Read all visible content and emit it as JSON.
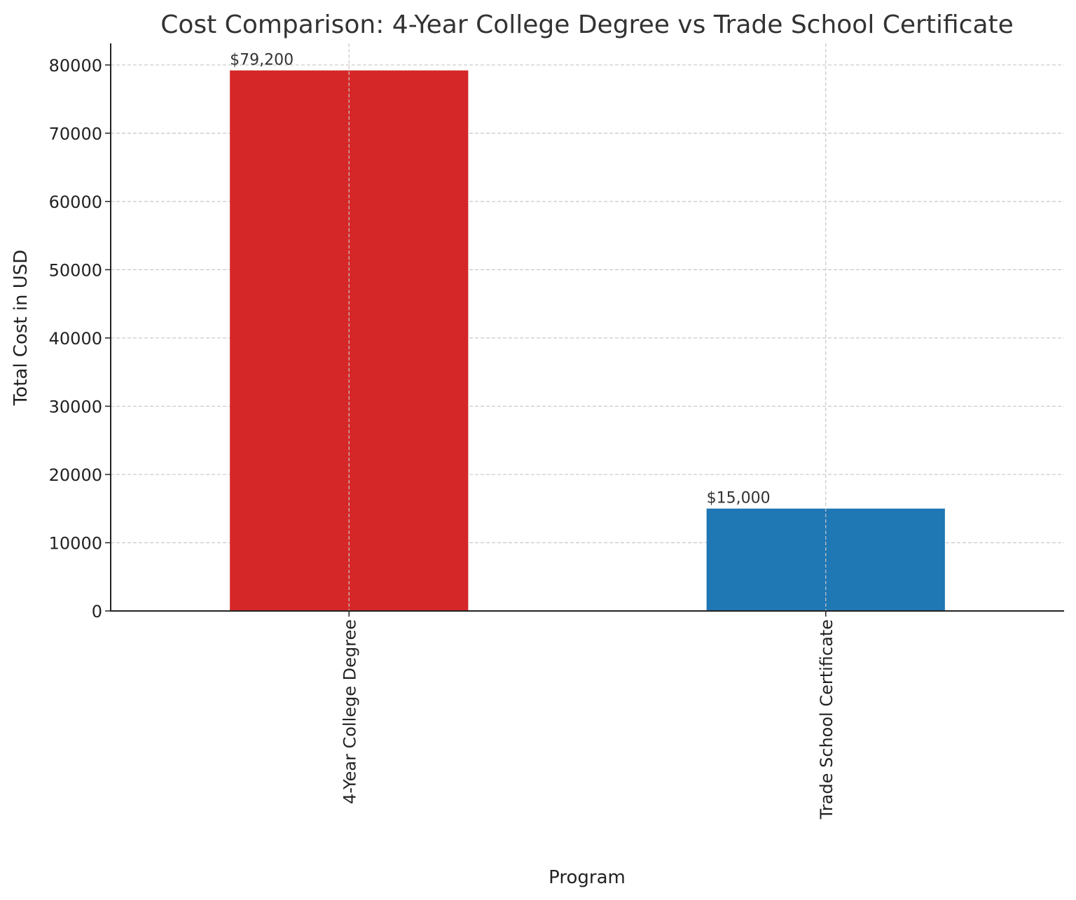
{
  "chart_data": {
    "type": "bar",
    "title": "Cost Comparison: 4-Year College Degree vs Trade School Certificate",
    "xlabel": "Program",
    "ylabel": "Total Cost in USD",
    "categories": [
      "4-Year College Degree",
      "Trade School Certificate"
    ],
    "values": [
      79200,
      15000
    ],
    "data_labels": [
      "$79,200",
      "$15,000"
    ],
    "colors": [
      "#d62728",
      "#1f77b4"
    ],
    "ylim": [
      0,
      83160
    ],
    "yticks": [
      0,
      10000,
      20000,
      30000,
      40000,
      50000,
      60000,
      70000,
      80000
    ],
    "ytick_labels": [
      "0",
      "10000",
      "20000",
      "30000",
      "40000",
      "50000",
      "60000",
      "70000",
      "80000"
    ],
    "grid": true,
    "xtick_rotation": 90
  }
}
